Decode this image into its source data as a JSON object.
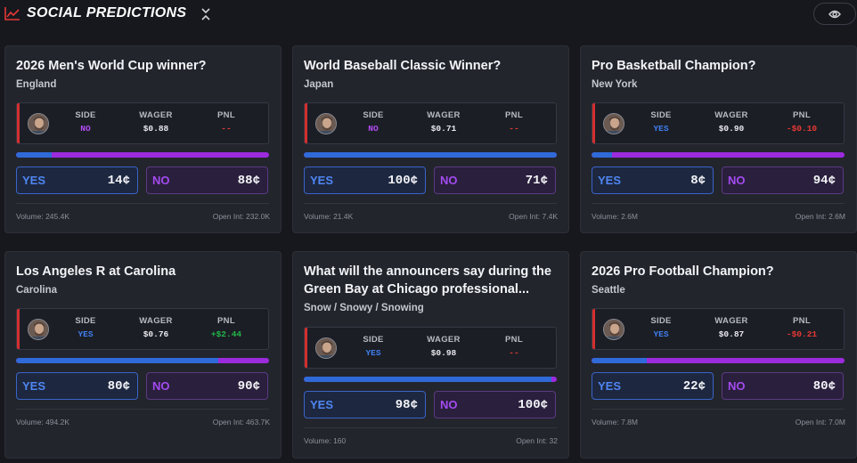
{
  "header": {
    "title": "SOCIAL PREDICTIONS",
    "icon": "trend-chart-icon",
    "collapse_icon": "collapse-icon",
    "toggle_icon": "eye-icon",
    "accent": "#e53935"
  },
  "columns": {
    "side": "SIDE",
    "wager": "WAGER",
    "pnl": "PNL"
  },
  "buttons": {
    "yes": "YES",
    "no": "NO"
  },
  "colors": {
    "yes": "#2f6ad8",
    "no": "#9b2bdc",
    "pnl_pos": "#22b84b",
    "pnl_neg": "#e53935",
    "pnl_flat": "#3aa566"
  },
  "cards": [
    {
      "title": "2026 Men's World Cup winner?",
      "subtitle": "England",
      "side": "NO",
      "wager": "$0.88",
      "pnl": "--",
      "yes_price": "14¢",
      "no_price": "88¢",
      "yes_share": 0.14,
      "volume": "Volume: 245.4K",
      "open_int": "Open Int: 232.0K"
    },
    {
      "title": "World Baseball Classic Winner?",
      "subtitle": "Japan",
      "side": "NO",
      "wager": "$0.71",
      "pnl": "--",
      "yes_price": "100¢",
      "no_price": "71¢",
      "yes_share": 1.0,
      "volume": "Volume: 21.4K",
      "open_int": "Open Int: 7.4K"
    },
    {
      "title": "Pro Basketball Champion?",
      "subtitle": "New York",
      "side": "YES",
      "wager": "$0.90",
      "pnl": "-$0.10",
      "yes_price": "8¢",
      "no_price": "94¢",
      "yes_share": 0.08,
      "volume": "Volume: 2.6M",
      "open_int": "Open Int: 2.6M"
    },
    {
      "title": "Los Angeles R at Carolina",
      "subtitle": "Carolina",
      "side": "YES",
      "wager": "$0.76",
      "pnl": "+$2.44",
      "yes_price": "80¢",
      "no_price": "90¢",
      "yes_share": 0.8,
      "volume": "Volume: 494.2K",
      "open_int": "Open Int: 463.7K"
    },
    {
      "title": "What will the announcers say during the Green Bay at Chicago professional...",
      "subtitle": "Snow / Snowy / Snowing",
      "side": "YES",
      "wager": "$0.98",
      "pnl": "--",
      "yes_price": "98¢",
      "no_price": "100¢",
      "yes_share": 0.98,
      "volume": "Volume: 160",
      "open_int": "Open Int: 32"
    },
    {
      "title": "2026 Pro Football Champion?",
      "subtitle": "Seattle",
      "side": "YES",
      "wager": "$0.87",
      "pnl": "-$0.21",
      "yes_price": "22¢",
      "no_price": "80¢",
      "yes_share": 0.22,
      "volume": "Volume: 7.8M",
      "open_int": "Open Int: 7.0M"
    }
  ]
}
